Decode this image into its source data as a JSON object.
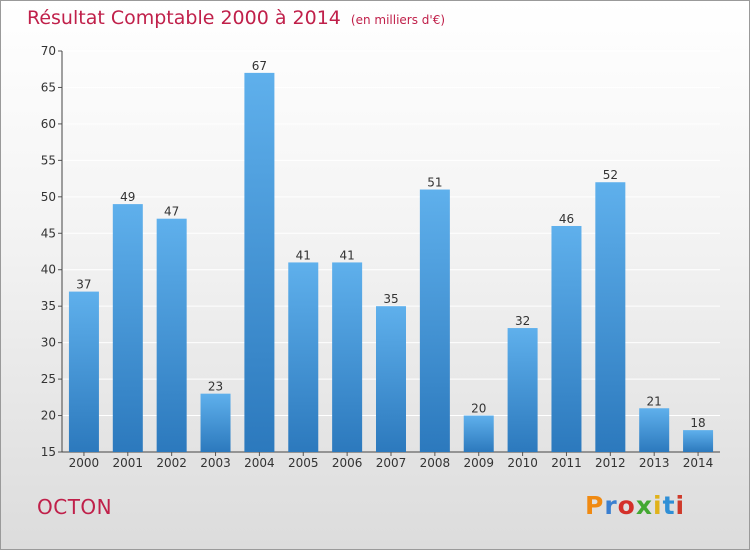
{
  "title": "Résultat Comptable 2000 à 2014",
  "subtitle": "(en milliers d'€)",
  "commune": "OCTON",
  "logo": {
    "text": "Proxiti",
    "letter_colors": [
      "#f08a12",
      "#3a7fd0",
      "#d4302a",
      "#43a832",
      "#e0b21a",
      "#2f8fd6",
      "#cf3a2a"
    ]
  },
  "colors": {
    "bar_top": "#5fb0ec",
    "bar_bottom": "#2c79bd",
    "title": "#c0204a",
    "grid": "#ffffff"
  },
  "chart_data": {
    "type": "bar",
    "categories": [
      "2000",
      "2001",
      "2002",
      "2003",
      "2004",
      "2005",
      "2006",
      "2007",
      "2008",
      "2009",
      "2010",
      "2011",
      "2012",
      "2013",
      "2014"
    ],
    "values": [
      37,
      49,
      47,
      23,
      67,
      41,
      41,
      35,
      51,
      20,
      32,
      46,
      52,
      21,
      18
    ],
    "ylim": [
      15,
      70
    ],
    "yticks": [
      15,
      20,
      25,
      30,
      35,
      40,
      45,
      50,
      55,
      60,
      65,
      70
    ],
    "grid": true,
    "legend": "none"
  }
}
